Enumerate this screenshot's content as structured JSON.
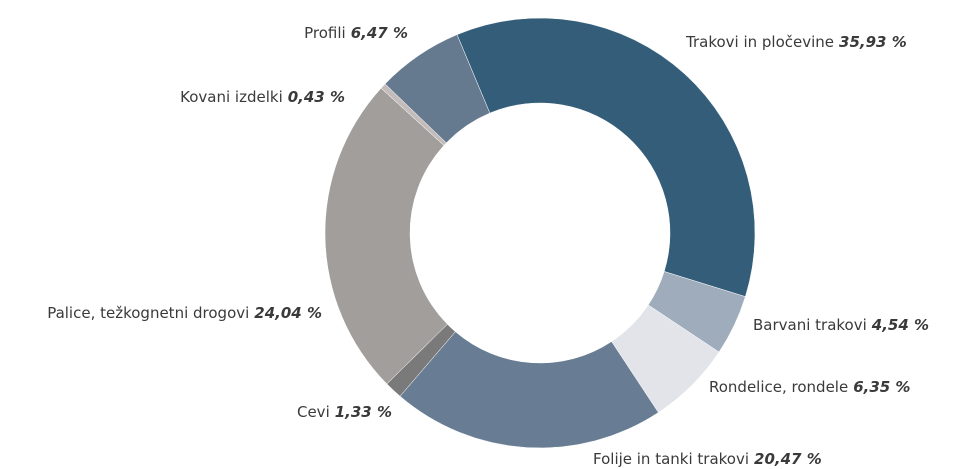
{
  "chart_data": {
    "type": "donut",
    "categories": [
      "Trakovi in pločevine",
      "Barvani trakovi",
      "Rondelice, rondele",
      "Folije in tanki trakovi",
      "Cevi",
      "Palice, težkognetni drogovi",
      "Kovani izdelki",
      "Profili"
    ],
    "values": [
      35.93,
      4.54,
      6.35,
      20.47,
      1.33,
      24.04,
      0.43,
      6.47
    ],
    "value_labels": [
      "35,93 %",
      "4,54 %",
      "6,35 %",
      "20,47 %",
      "1,33 %",
      "24,04 %",
      "0,43 %",
      "6,47 %"
    ],
    "colors": [
      "#335d78",
      "#9eacbb",
      "#e2e4ea",
      "#687d93",
      "#7a7a7a",
      "#a29e9b",
      "#c4bbbb",
      "#65798f"
    ]
  }
}
